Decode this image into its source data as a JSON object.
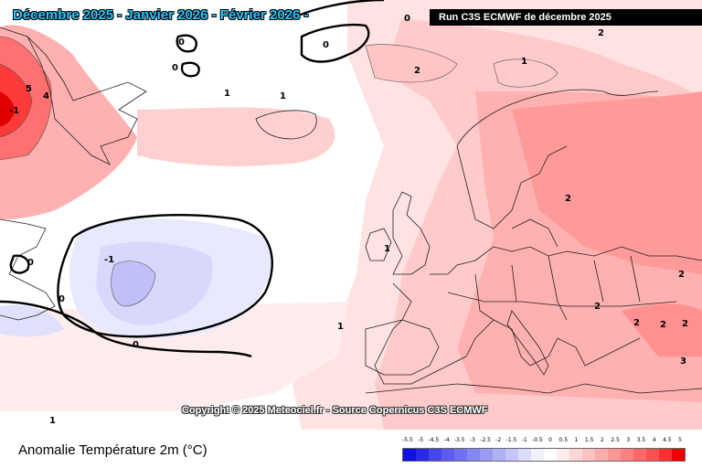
{
  "map": {
    "title": "Décembre 2025 - Janvier 2026 - Février 2026 -",
    "run": "Run C3S ECMWF de décembre 2025",
    "copyright": "Copyright © 2025 Meteociel.fr - Source Copernicus C3S ECMWF",
    "variable_label": "Anomalie Température 2m (°C)",
    "contour_labels": [
      "0",
      "0",
      "0",
      "0",
      "0",
      "0",
      "0",
      "1",
      "1",
      "1",
      "1",
      "1",
      "1",
      "2",
      "2",
      "2",
      "2",
      "2",
      "2",
      "2",
      "2",
      "3",
      "4",
      "5",
      "-1",
      "-1"
    ],
    "legend": {
      "tick_labels": [
        "-5.5",
        "-5",
        "-4.5",
        "-4",
        "-3.5",
        "-3",
        "-2.5",
        "-2",
        "-1.5",
        "-1",
        "-0.5",
        "0",
        "0.5",
        "1",
        "1.5",
        "2",
        "2.5",
        "3",
        "3.5",
        "4",
        "4.5",
        "5"
      ],
      "colors": [
        "#1010e0",
        "#2a2ae6",
        "#4545ea",
        "#5c5cee",
        "#7070f0",
        "#8585f3",
        "#9a9af5",
        "#b0b0f7",
        "#c5c5fa",
        "#dcdcfc",
        "#f0f0ff",
        "#ffffff",
        "#ffecec",
        "#ffd6d6",
        "#ffc2c2",
        "#ffacac",
        "#ff9696",
        "#ff8080",
        "#ff6868",
        "#ff5050",
        "#ff3030",
        "#ee0000"
      ]
    }
  }
}
